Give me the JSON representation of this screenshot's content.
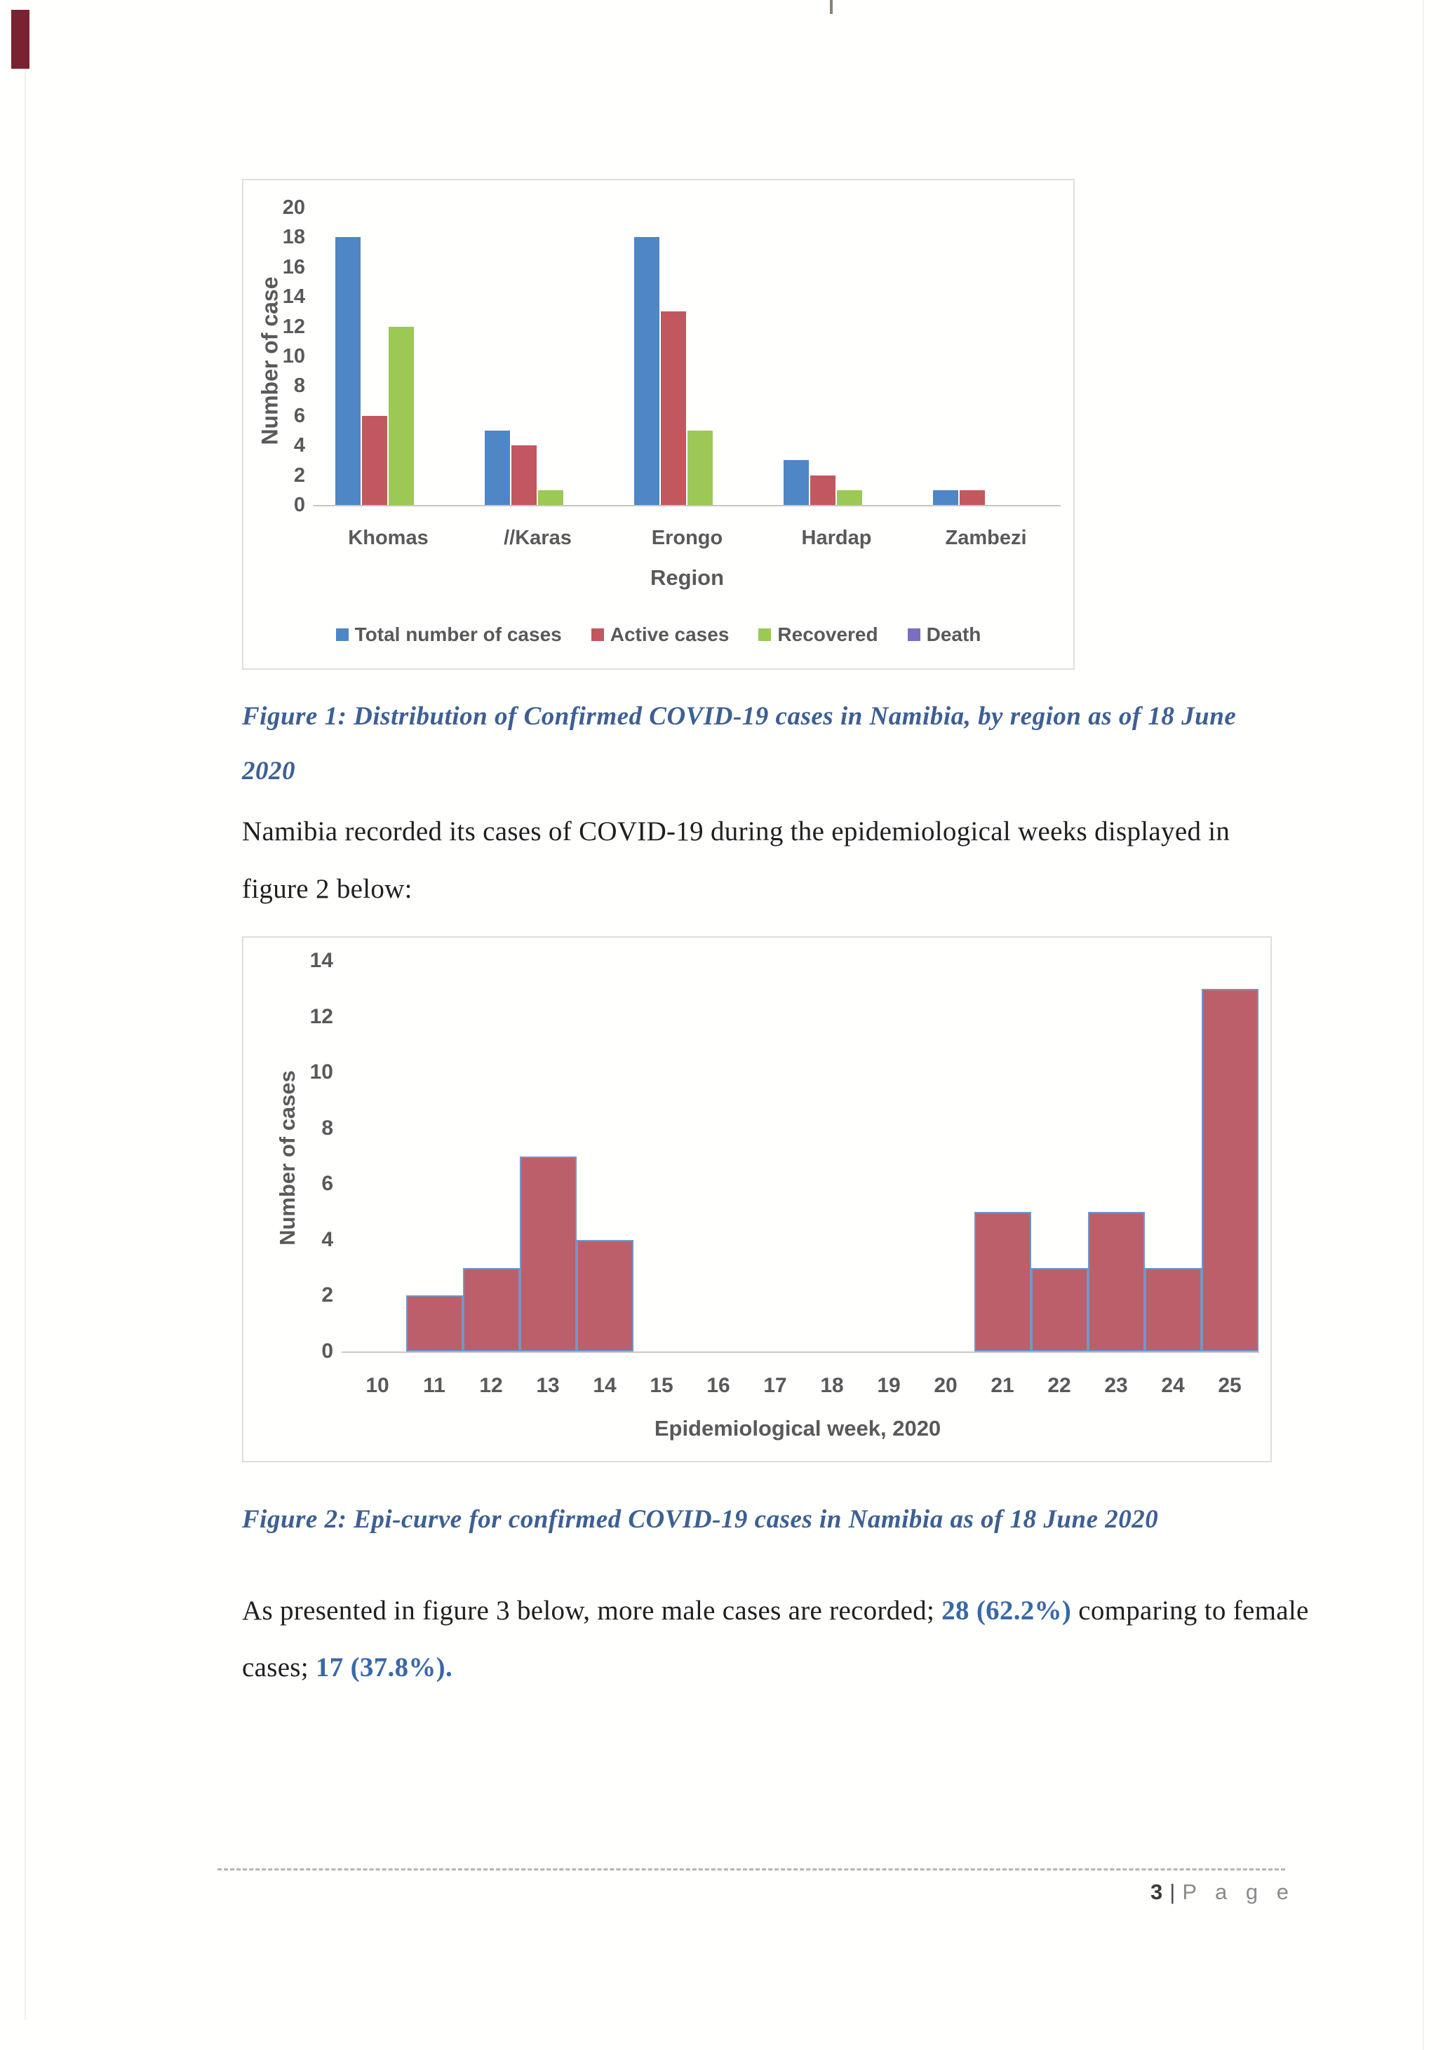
{
  "figure1": {
    "caption_line1": "Figure 1: Distribution of Confirmed COVID-19 cases in Namibia, by region as of 18 June",
    "caption_line2": "2020"
  },
  "paragraph1": {
    "line1": "Namibia recorded its cases of COVID-19 during the epidemiological weeks displayed in",
    "line2": "figure 2 below:"
  },
  "figure2": {
    "caption": "Figure 2: Epi-curve for confirmed COVID-19 cases in Namibia as of 18 June 2020"
  },
  "paragraph2": {
    "line1_pre": "As presented in figure 3 below, more male cases are recorded; ",
    "line1_highlight": "28 (62.2%)",
    "line1_post": " comparing to female",
    "line2_pre": "cases; ",
    "line2_highlight": "17 (37.8%)."
  },
  "footer": {
    "page_number": "3",
    "separator": "|",
    "label": "P a g e"
  },
  "colors": {
    "caption_blue": "#3d5f94",
    "axis_gray": "#595959",
    "chart_border": "#dedede"
  },
  "chart_data": [
    {
      "type": "bar",
      "categories": [
        "Khomas",
        "//Karas",
        "Erongo",
        "Hardap",
        "Zambezi"
      ],
      "series": [
        {
          "name": "Total number of cases",
          "color": "#4e86c6",
          "values": [
            18,
            5,
            18,
            3,
            1
          ]
        },
        {
          "name": "Active cases",
          "color": "#c2575f",
          "values": [
            6,
            4,
            13,
            2,
            1
          ]
        },
        {
          "name": "Recovered",
          "color": "#9cc856",
          "values": [
            12,
            1,
            5,
            1,
            0
          ]
        },
        {
          "name": "Death",
          "color": "#7a6fbe",
          "values": [
            0,
            0,
            0,
            0,
            0
          ]
        }
      ],
      "title": "",
      "xlabel": "Region",
      "ylabel": "Number of case",
      "ylim": [
        0,
        20
      ],
      "ytick_step": 2,
      "grid": false,
      "legend_position": "bottom"
    },
    {
      "type": "bar",
      "x": [
        10,
        11,
        12,
        13,
        14,
        15,
        16,
        17,
        18,
        19,
        20,
        21,
        22,
        23,
        24,
        25
      ],
      "values": [
        0,
        2,
        3,
        7,
        4,
        0,
        0,
        0,
        0,
        0,
        0,
        5,
        3,
        5,
        3,
        13
      ],
      "title": "",
      "xlabel": "Epidemiological week, 2020",
      "ylabel": "Number of cases",
      "ylim": [
        0,
        14
      ],
      "ytick_step": 2,
      "grid": false,
      "bar_fill": "#bc5f6a",
      "bar_border": "#7396c6",
      "legend_position": "none"
    }
  ]
}
